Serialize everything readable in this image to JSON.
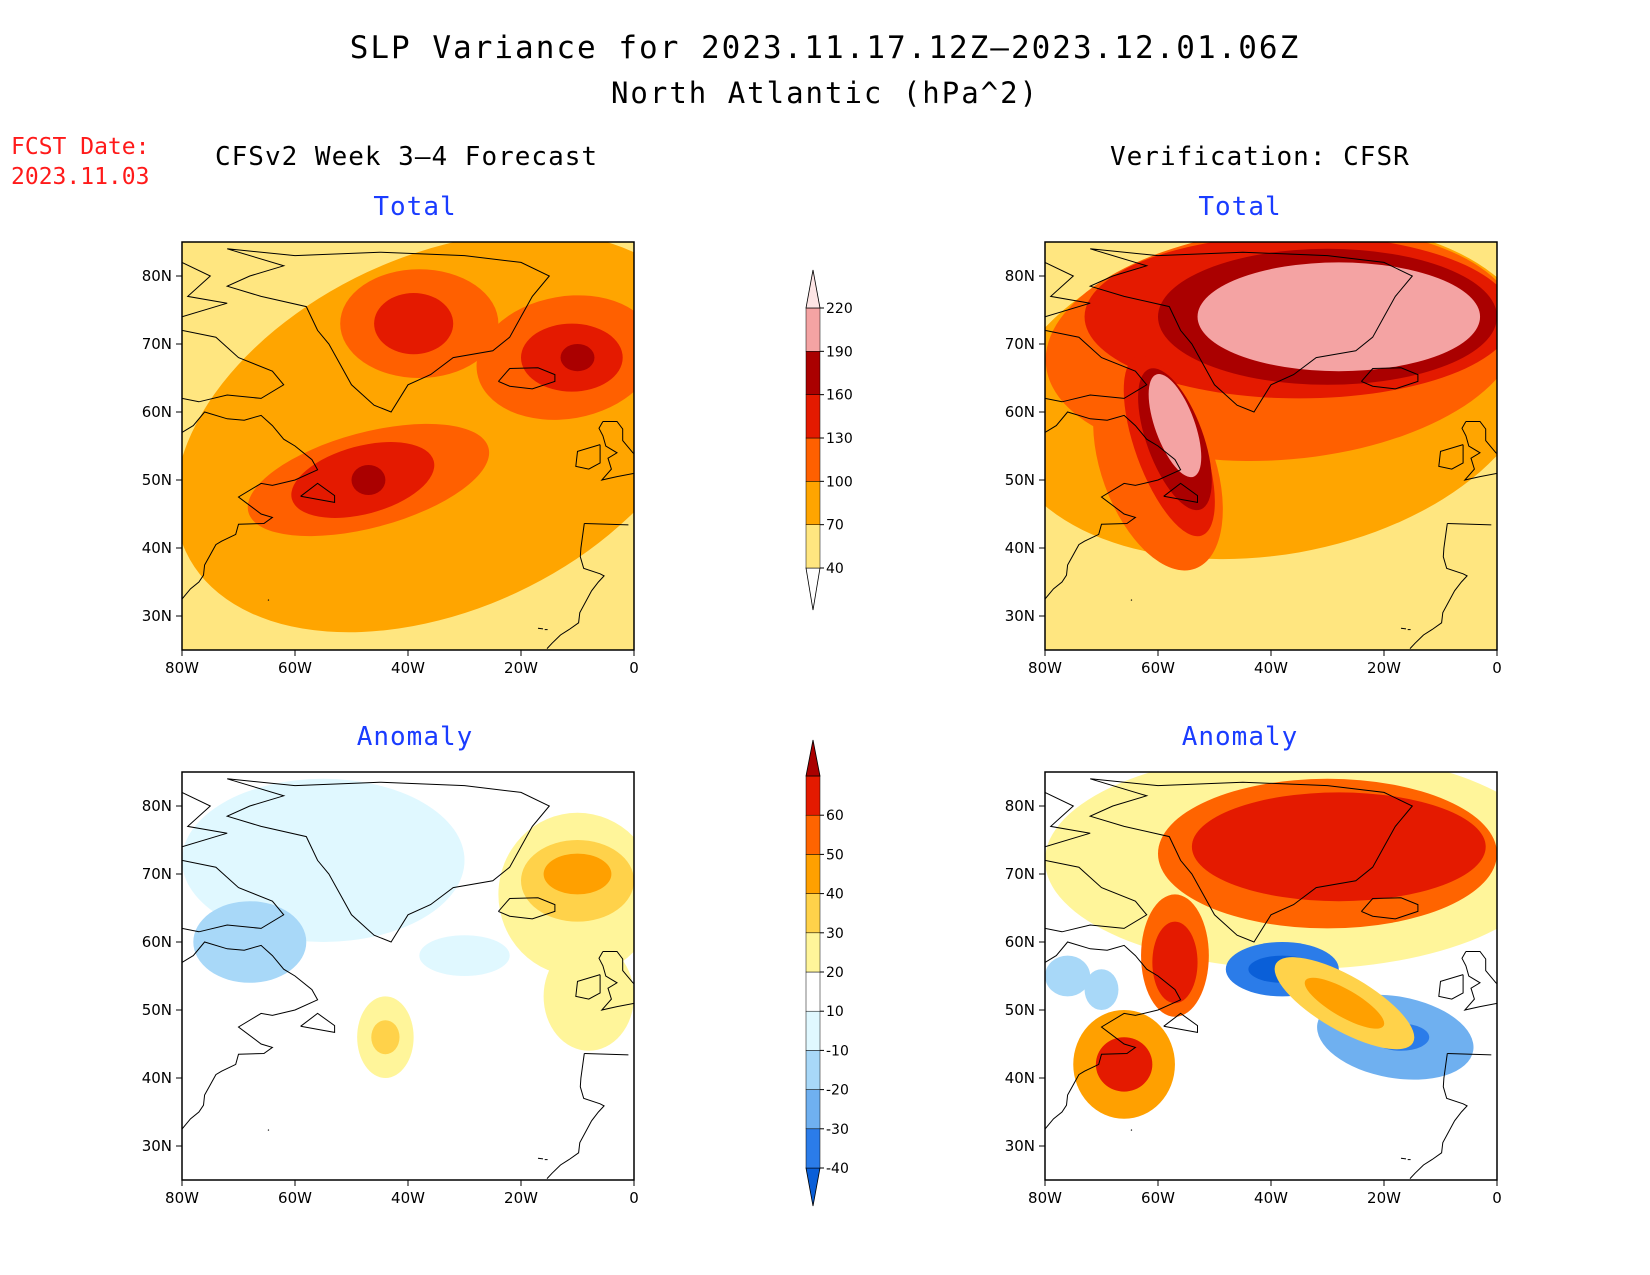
{
  "header": {
    "title": "SLP Variance for 2023.11.17.12Z–2023.12.01.06Z",
    "subtitle": "North Atlantic (hPa^2)",
    "fcst_label": "FCST Date:",
    "fcst_date": "2023.11.03"
  },
  "columns": {
    "left": "CFSv2 Week 3–4 Forecast",
    "right": "Verification: CFSR"
  },
  "panel_titles": {
    "forecast_total": "Total",
    "verification_total": "Total",
    "forecast_anomaly": "Anomaly",
    "verification_anomaly": "Anomaly"
  },
  "axes": {
    "lat_ticks": [
      "80N",
      "70N",
      "60N",
      "50N",
      "40N",
      "30N"
    ],
    "lon_ticks": [
      "80W",
      "60W",
      "40W",
      "20W",
      "0"
    ],
    "lat_range": [
      25,
      85
    ],
    "lon_range": [
      -80,
      0
    ]
  },
  "colorbars": {
    "total": {
      "levels": [
        "40",
        "70",
        "100",
        "130",
        "160",
        "190",
        "220"
      ],
      "colors": [
        "#ffffff",
        "#ffe680",
        "#ffa500",
        "#ff6000",
        "#e41a00",
        "#aa0000",
        "#f4a3a3",
        "#fde5e5"
      ]
    },
    "anomaly": {
      "levels": [
        "-40",
        "-30",
        "-20",
        "-10",
        "10",
        "20",
        "30",
        "40",
        "50",
        "60"
      ],
      "colors": [
        "#0a5fd8",
        "#2b7ce9",
        "#6fb0f0",
        "#a8d8f8",
        "#e0f8ff",
        "#ffffff",
        "#fff59a",
        "#ffd24a",
        "#ffa000",
        "#ff6400",
        "#e41a00",
        "#aa0000"
      ]
    }
  },
  "map_fields": {
    "forecast_total": [
      {
        "lvl": 1,
        "lon": -32,
        "lat": 58,
        "rx": 60,
        "ry": 34,
        "rot": 25
      },
      {
        "lvl": 2,
        "lon": -34,
        "lat": 57,
        "rx": 50,
        "ry": 26,
        "rot": 25
      },
      {
        "lvl": 3,
        "lon": -47,
        "lat": 50,
        "rx": 22,
        "ry": 7,
        "rot": 15
      },
      {
        "lvl": 3,
        "lon": -38,
        "lat": 73,
        "rx": 14,
        "ry": 8,
        "rot": 0
      },
      {
        "lvl": 3,
        "lon": -12,
        "lat": 68,
        "rx": 16,
        "ry": 9,
        "rot": 10
      },
      {
        "lvl": 4,
        "lon": -48,
        "lat": 50,
        "rx": 13,
        "ry": 5,
        "rot": 15
      },
      {
        "lvl": 4,
        "lon": -39,
        "lat": 73,
        "rx": 7,
        "ry": 4.5,
        "rot": 0
      },
      {
        "lvl": 4,
        "lon": -11,
        "lat": 68,
        "rx": 9,
        "ry": 5,
        "rot": 0
      },
      {
        "lvl": 5,
        "lon": -47,
        "lat": 50,
        "rx": 3,
        "ry": 2.2,
        "rot": 0
      },
      {
        "lvl": 5,
        "lon": -10,
        "lat": 68,
        "rx": 3,
        "ry": 2,
        "rot": 0
      }
    ],
    "verification_total": [
      {
        "lvl": 1,
        "lon": -40,
        "lat": 62,
        "rx": 55,
        "ry": 30,
        "rot": 10
      },
      {
        "lvl": 2,
        "lon": -40,
        "lat": 63,
        "rx": 48,
        "ry": 24,
        "rot": 10
      },
      {
        "lvl": 3,
        "lon": -38,
        "lat": 70,
        "rx": 42,
        "ry": 17,
        "rot": 5
      },
      {
        "lvl": 3,
        "lon": -60,
        "lat": 52,
        "rx": 10,
        "ry": 16,
        "rot": 20
      },
      {
        "lvl": 4,
        "lon": -35,
        "lat": 74,
        "rx": 38,
        "ry": 12,
        "rot": 0
      },
      {
        "lvl": 4,
        "lon": -58,
        "lat": 55,
        "rx": 6,
        "ry": 14,
        "rot": 20
      },
      {
        "lvl": 5,
        "lon": -30,
        "lat": 74,
        "rx": 30,
        "ry": 10,
        "rot": 0
      },
      {
        "lvl": 5,
        "lon": -57,
        "lat": 56,
        "rx": 5,
        "ry": 11,
        "rot": 20
      },
      {
        "lvl": 6,
        "lon": -28,
        "lat": 74,
        "rx": 25,
        "ry": 8,
        "rot": 0
      },
      {
        "lvl": 6,
        "lon": -57,
        "lat": 58,
        "rx": 3.5,
        "ry": 8,
        "rot": 20
      }
    ],
    "forecast_anomaly": [
      {
        "lvl": 4,
        "lon": -55,
        "lat": 72,
        "rx": 25,
        "ry": 12,
        "rot": 0
      },
      {
        "lvl": 3,
        "lon": -68,
        "lat": 60,
        "rx": 10,
        "ry": 6,
        "rot": 0
      },
      {
        "lvl": 4,
        "lon": -30,
        "lat": 58,
        "rx": 8,
        "ry": 3,
        "rot": 0
      },
      {
        "lvl": 6,
        "lon": -10,
        "lat": 67,
        "rx": 14,
        "ry": 12,
        "rot": 0
      },
      {
        "lvl": 7,
        "lon": -10,
        "lat": 69,
        "rx": 10,
        "ry": 6,
        "rot": 0
      },
      {
        "lvl": 8,
        "lon": -10,
        "lat": 70,
        "rx": 6,
        "ry": 3,
        "rot": 0
      },
      {
        "lvl": 6,
        "lon": -44,
        "lat": 46,
        "rx": 5,
        "ry": 6,
        "rot": 0
      },
      {
        "lvl": 7,
        "lon": -44,
        "lat": 46,
        "rx": 2.5,
        "ry": 2.5,
        "rot": 0
      },
      {
        "lvl": 6,
        "lon": -8,
        "lat": 52,
        "rx": 8,
        "ry": 8,
        "rot": 0
      }
    ],
    "verification_anomaly": [
      {
        "lvl": 6,
        "lon": -35,
        "lat": 72,
        "rx": 45,
        "ry": 16,
        "rot": 0
      },
      {
        "lvl": 9,
        "lon": -30,
        "lat": 73,
        "rx": 30,
        "ry": 11,
        "rot": 0
      },
      {
        "lvl": 10,
        "lon": -28,
        "lat": 74,
        "rx": 26,
        "ry": 8,
        "rot": 0
      },
      {
        "lvl": 9,
        "lon": -57,
        "lat": 58,
        "rx": 6,
        "ry": 9,
        "rot": 0
      },
      {
        "lvl": 10,
        "lon": -57,
        "lat": 57,
        "rx": 4,
        "ry": 6,
        "rot": 0
      },
      {
        "lvl": 8,
        "lon": -66,
        "lat": 42,
        "rx": 9,
        "ry": 8,
        "rot": 0
      },
      {
        "lvl": 10,
        "lon": -66,
        "lat": 42,
        "rx": 5,
        "ry": 4,
        "rot": 0
      },
      {
        "lvl": 1,
        "lon": -38,
        "lat": 56,
        "rx": 10,
        "ry": 4,
        "rot": 0
      },
      {
        "lvl": 0,
        "lon": -38,
        "lat": 56,
        "rx": 6,
        "ry": 2,
        "rot": 0
      },
      {
        "lvl": 2,
        "lon": -18,
        "lat": 46,
        "rx": 14,
        "ry": 6,
        "rot": -10
      },
      {
        "lvl": 1,
        "lon": -17,
        "lat": 46,
        "rx": 5,
        "ry": 2,
        "rot": 0
      },
      {
        "lvl": 7,
        "lon": -27,
        "lat": 51,
        "rx": 14,
        "ry": 4,
        "rot": -30
      },
      {
        "lvl": 8,
        "lon": -27,
        "lat": 51,
        "rx": 8,
        "ry": 2,
        "rot": -30
      },
      {
        "lvl": 3,
        "lon": -76,
        "lat": 55,
        "rx": 4,
        "ry": 3,
        "rot": 0
      },
      {
        "lvl": 3,
        "lon": -70,
        "lat": 53,
        "rx": 3,
        "ry": 3,
        "rot": 0
      }
    ]
  }
}
